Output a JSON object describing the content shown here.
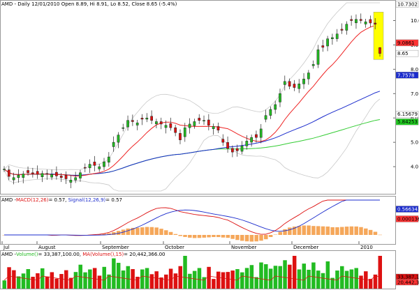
{
  "chart_data": [
    {
      "type": "candlestick",
      "symbol": "AMD",
      "title": "AMD - Daily 12/01/2010 Open 8.89, Hi 8.91, Lo 8.52, Close 8.65 (-5.4%)",
      "ylim": [
        3.0,
        10.73
      ],
      "yticks": [
        "10.0",
        "9.0",
        "8.0",
        "7.0",
        "6.0",
        "5.0",
        "4.0"
      ],
      "x_labels": [
        "Jul",
        "August",
        "September",
        "October",
        "November",
        "December",
        "2010"
      ],
      "price_badges": [
        {
          "label": "10.7302",
          "color": "#ffffff",
          "text": "#000000"
        },
        {
          "label": "9.0861",
          "color": "#ff3333",
          "text": "#000000"
        },
        {
          "label": "8.65",
          "color": "#ffffff",
          "text": "#000000"
        },
        {
          "label": "7.7578",
          "color": "#1a2bcc",
          "text": "#ffffff"
        },
        {
          "label": "6.15679",
          "color": "#ffffff",
          "text": "#000000"
        },
        {
          "label": "5.84253",
          "color": "#22cc22",
          "text": "#000000"
        }
      ],
      "last_candle": {
        "open": 8.89,
        "high": 8.91,
        "low": 8.52,
        "close": 8.65
      },
      "overlays": [
        "MA 10 (red)",
        "MA 50 (blue)",
        "MA 200 (green)",
        "Bollinger bands (gray)"
      ],
      "colors": {
        "up": "#22bb22",
        "down": "#dd1111",
        "ma_short": "#ee2222",
        "ma_mid": "#1a2bcc",
        "ma_long": "#33cc33",
        "bands": "#c8c8c8",
        "highlight": "#ffff00"
      }
    },
    {
      "type": "macd",
      "label_prefix": "AMD - ",
      "macd_label": "MACD(12,26)",
      "macd_value": " = 0.57,",
      "signal_label": "Signal(12,26,9)",
      "signal_value": " = 0.57",
      "badges": [
        {
          "label": "0.566343",
          "color": "#1a2bcc",
          "text": "#ffffff"
        },
        {
          "label": "0.000136",
          "color": "#ff3333",
          "text": "#000000"
        }
      ]
    },
    {
      "type": "volume",
      "label_prefix": "AMD - ",
      "volume_label": "Volume()",
      "volume_value": " = 33,387,100.00,",
      "ma_label": "MA(Volume(),15)",
      "ma_value": " = 20,442,366.00",
      "badges": [
        {
          "label": "33,387,1",
          "color": "#dd1111",
          "text": "#000000"
        },
        {
          "label": "20,442,3",
          "color": "#ff3333",
          "text": "#000000"
        }
      ]
    }
  ]
}
